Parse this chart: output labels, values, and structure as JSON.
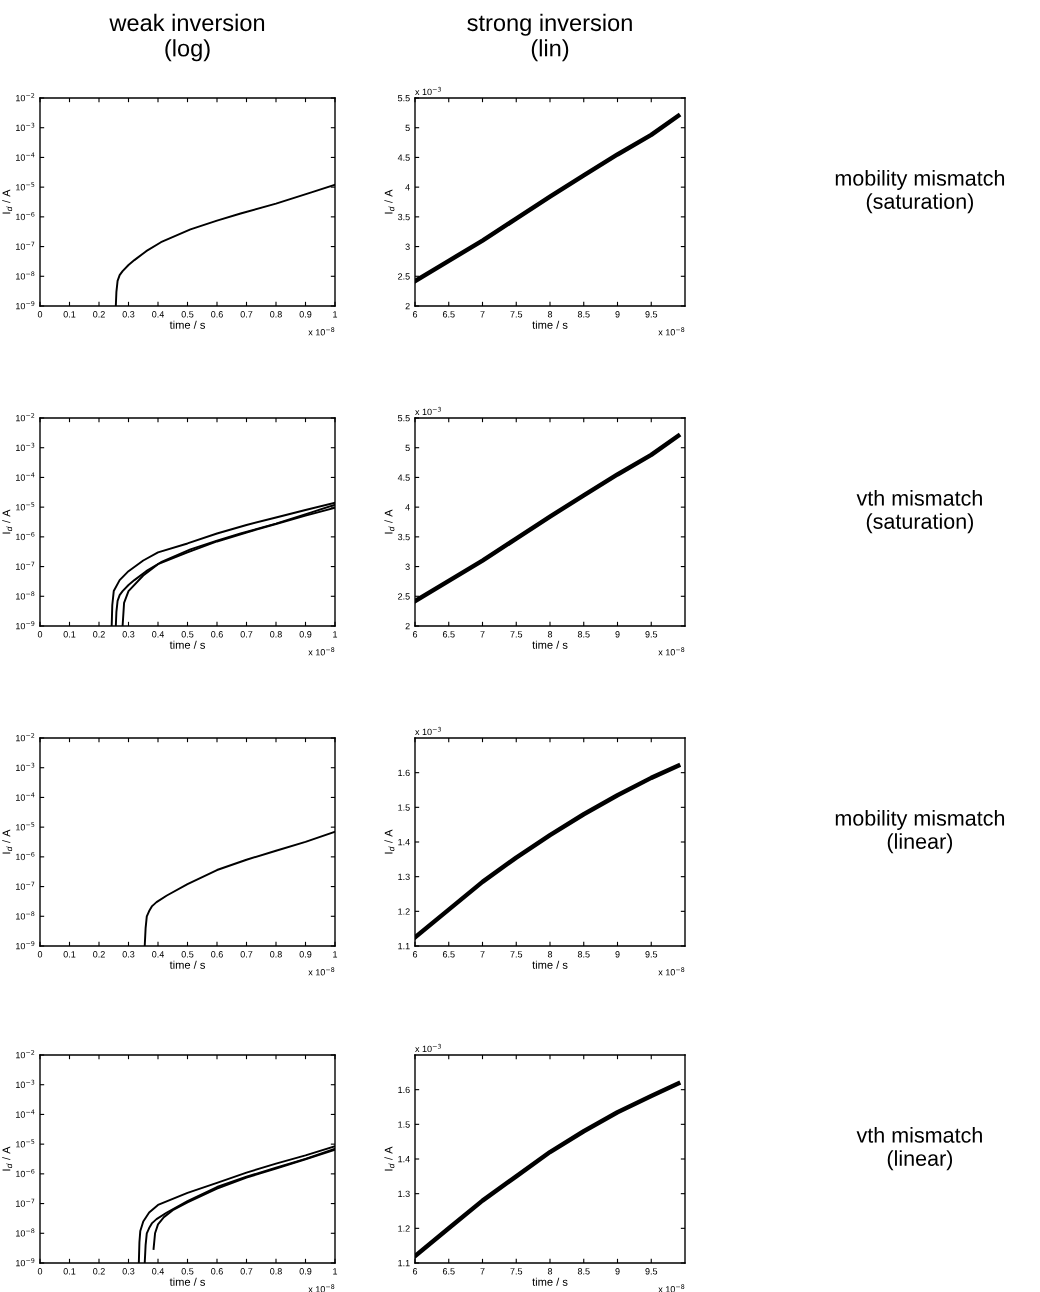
{
  "chart_data": [
    {
      "type": "line",
      "title": "weak inversion\n(log)",
      "xlabel": "time / s",
      "ylabel": "I$_{d}$ / A",
      "log": "y",
      "grid": false,
      "legend": false,
      "marker": "none",
      "line_style": "solid",
      "xlim": [
        0,
        1
      ],
      "xticks": [
        0,
        0.1,
        0.2,
        0.3,
        0.4,
        0.5,
        0.6,
        0.7,
        0.8,
        0.9,
        1
      ],
      "ylim": [
        1e-09,
        0.01
      ],
      "yticks": [
        {
          "value": 1e-09,
          "label": "10$^{−9}$"
        },
        {
          "value": 1e-08,
          "label": "10$^{−8}$"
        },
        {
          "value": 1e-07,
          "label": "10$^{−7}$"
        },
        {
          "value": 1e-06,
          "label": "10$^{−6}$"
        },
        {
          "value": 1e-05,
          "label": "10$^{−5}$"
        },
        {
          "value": 0.0001,
          "label": "10$^{−4}$"
        },
        {
          "value": 0.001,
          "label": "10$^{−3}$"
        },
        {
          "value": 0.01,
          "label": "10$^{−2}$"
        }
      ],
      "annotations": [
        "x 10$^{−8}$"
      ],
      "series": [
        {
          "color": "#000000",
          "x": [
            0.257,
            0.259,
            0.263,
            0.27,
            0.28,
            0.3,
            0.32,
            0.36,
            0.41,
            0.51,
            0.6,
            0.68,
            0.8,
            0.92,
            1.0
          ],
          "values": [
            1e-09,
            3e-09,
            7e-09,
            1.1e-08,
            1.5e-08,
            2.4e-08,
            3.5e-08,
            7e-08,
            1.4e-07,
            3.8e-07,
            7.5e-07,
            1.3e-06,
            2.8e-06,
            6.7e-06,
            1.2e-05
          ]
        }
      ]
    },
    {
      "type": "line",
      "title": "strong inversion\n(lin)",
      "xlabel": "time / s",
      "ylabel": "I$_{d}$ / A",
      "grid": false,
      "legend": false,
      "marker": "none",
      "line_style": "solid",
      "xlim": [
        6,
        10
      ],
      "xticks": [
        6,
        6.5,
        7,
        7.5,
        8,
        8.5,
        9,
        9.5
      ],
      "ylim": [
        2,
        5.5
      ],
      "yticks": [
        2,
        2.5,
        3,
        3.5,
        4,
        4.5,
        5,
        5.5
      ],
      "annotations": [
        "x 10$^{−8}$",
        "x 10$^{−3}$",
        "mobility mismatch\n(saturation)"
      ],
      "series": [
        {
          "color": "#000000",
          "x": [
            6,
            6.5,
            7,
            7.5,
            8,
            8.5,
            9,
            9.5,
            9.9
          ],
          "values": [
            2.42,
            2.76,
            3.1,
            3.47,
            3.84,
            4.2,
            4.55,
            4.88,
            5.2
          ]
        }
      ]
    },
    {
      "type": "line",
      "xlabel": "time / s",
      "ylabel": "I$_{d}$ / A",
      "log": "y",
      "grid": false,
      "legend": false,
      "marker": "none",
      "line_style": "solid",
      "xlim": [
        0,
        1
      ],
      "xticks": [
        0,
        0.1,
        0.2,
        0.3,
        0.4,
        0.5,
        0.6,
        0.7,
        0.8,
        0.9,
        1
      ],
      "ylim": [
        1e-09,
        0.01
      ],
      "yticks": [
        {
          "value": 1e-09,
          "label": "10$^{−9}$"
        },
        {
          "value": 1e-08,
          "label": "10$^{−8}$"
        },
        {
          "value": 1e-07,
          "label": "10$^{−7}$"
        },
        {
          "value": 1e-06,
          "label": "10$^{−6}$"
        },
        {
          "value": 1e-05,
          "label": "10$^{−5}$"
        },
        {
          "value": 0.0001,
          "label": "10$^{−4}$"
        },
        {
          "value": 0.001,
          "label": "10$^{−3}$"
        },
        {
          "value": 0.01,
          "label": "10$^{−2}$"
        }
      ],
      "annotations": [
        "x 10$^{−8}$"
      ],
      "series": [
        {
          "color": "#000000",
          "x": [
            0.243,
            0.245,
            0.25,
            0.27,
            0.3,
            0.35,
            0.4,
            0.5,
            0.6,
            0.7,
            0.8,
            0.9,
            1.0
          ],
          "values": [
            1e-09,
            5e-09,
            1.5e-08,
            3.5e-08,
            7e-08,
            1.6e-07,
            3e-07,
            6e-07,
            1.3e-06,
            2.5e-06,
            4.5e-06,
            8e-06,
            1.4e-05
          ]
        },
        {
          "color": "#000000",
          "x": [
            0.257,
            0.259,
            0.263,
            0.27,
            0.28,
            0.3,
            0.32,
            0.36,
            0.41,
            0.51,
            0.6,
            0.68,
            0.8,
            0.92,
            1.0
          ],
          "values": [
            1e-09,
            3e-09,
            7e-09,
            1.1e-08,
            1.5e-08,
            2.4e-08,
            3.5e-08,
            7e-08,
            1.4e-07,
            3.8e-07,
            7.5e-07,
            1.3e-06,
            2.8e-06,
            6.7e-06,
            1.2e-05
          ]
        },
        {
          "color": "#000000",
          "x": [
            0.28,
            0.285,
            0.3,
            0.35,
            0.4,
            0.5,
            0.6,
            0.7,
            0.8,
            0.9,
            1.0
          ],
          "values": [
            1e-09,
            6e-09,
            1.5e-08,
            5e-08,
            1.2e-07,
            3e-07,
            7e-07,
            1.4e-06,
            2.7e-06,
            5.2e-06,
            9.5e-06
          ]
        }
      ]
    },
    {
      "type": "line",
      "xlabel": "time / s",
      "ylabel": "I$_{d}$ / A",
      "grid": false,
      "legend": false,
      "marker": "none",
      "line_style": "solid",
      "xlim": [
        6,
        10
      ],
      "xticks": [
        6,
        6.5,
        7,
        7.5,
        8,
        8.5,
        9,
        9.5
      ],
      "ylim": [
        2,
        5.5
      ],
      "yticks": [
        2,
        2.5,
        3,
        3.5,
        4,
        4.5,
        5,
        5.5
      ],
      "annotations": [
        "x 10$^{−8}$",
        "x 10$^{−3}$",
        "vth mismatch\n(saturation)"
      ],
      "series": [
        {
          "color": "#000000",
          "x": [
            6,
            6.5,
            7,
            7.5,
            8,
            8.5,
            9,
            9.5,
            9.9
          ],
          "values": [
            2.42,
            2.76,
            3.1,
            3.47,
            3.84,
            4.2,
            4.55,
            4.88,
            5.2
          ]
        }
      ]
    },
    {
      "type": "line",
      "xlabel": "time / s",
      "ylabel": "I$_{d}$ / A",
      "log": "y",
      "grid": false,
      "legend": false,
      "marker": "none",
      "line_style": "solid",
      "xlim": [
        0,
        1
      ],
      "xticks": [
        0,
        0.1,
        0.2,
        0.3,
        0.4,
        0.5,
        0.6,
        0.7,
        0.8,
        0.9,
        1
      ],
      "ylim": [
        1e-09,
        0.01
      ],
      "yticks": [
        {
          "value": 1e-09,
          "label": "10$^{−9}$"
        },
        {
          "value": 1e-08,
          "label": "10$^{−8}$"
        },
        {
          "value": 1e-07,
          "label": "10$^{−7}$"
        },
        {
          "value": 1e-06,
          "label": "10$^{−6}$"
        },
        {
          "value": 1e-05,
          "label": "10$^{−5}$"
        },
        {
          "value": 0.0001,
          "label": "10$^{−4}$"
        },
        {
          "value": 0.001,
          "label": "10$^{−3}$"
        },
        {
          "value": 0.01,
          "label": "10$^{−2}$"
        }
      ],
      "annotations": [
        "x 10$^{−8}$"
      ],
      "series": [
        {
          "color": "#000000",
          "x": [
            0.355,
            0.358,
            0.362,
            0.37,
            0.38,
            0.395,
            0.43,
            0.5,
            0.6,
            0.7,
            0.8,
            0.9,
            1.0
          ],
          "values": [
            1e-09,
            4e-09,
            1e-08,
            1.5e-08,
            2.2e-08,
            3e-08,
            5e-08,
            1.2e-07,
            3.6e-07,
            8e-07,
            1.6e-06,
            3.2e-06,
            7e-06
          ]
        }
      ]
    },
    {
      "type": "line",
      "xlabel": "time / s",
      "ylabel": "I$_{d}$ / A",
      "grid": false,
      "legend": false,
      "marker": "none",
      "line_style": "solid",
      "xlim": [
        6,
        10
      ],
      "xticks": [
        6,
        6.5,
        7,
        7.5,
        8,
        8.5,
        9,
        9.5
      ],
      "ylim": [
        1.1,
        1.7
      ],
      "yticks": [
        1.1,
        1.2,
        1.3,
        1.4,
        1.5,
        1.6
      ],
      "annotations": [
        "x 10$^{−8}$",
        "x 10$^{−3}$",
        "mobility mismatch\n(linear)"
      ],
      "series": [
        {
          "color": "#000000",
          "x": [
            6,
            6.5,
            7,
            7.5,
            8,
            8.5,
            9,
            9.5,
            9.9
          ],
          "values": [
            1.125,
            1.205,
            1.285,
            1.355,
            1.42,
            1.48,
            1.535,
            1.585,
            1.62
          ]
        }
      ]
    },
    {
      "type": "line",
      "xlabel": "time / s",
      "ylabel": "I$_{d}$ / A",
      "log": "y",
      "grid": false,
      "legend": false,
      "marker": "none",
      "line_style": "solid",
      "xlim": [
        0,
        1
      ],
      "xticks": [
        0,
        0.1,
        0.2,
        0.3,
        0.4,
        0.5,
        0.6,
        0.7,
        0.8,
        0.9,
        1
      ],
      "ylim": [
        1e-09,
        0.01
      ],
      "yticks": [
        {
          "value": 1e-09,
          "label": "10$^{−9}$"
        },
        {
          "value": 1e-08,
          "label": "10$^{−8}$"
        },
        {
          "value": 1e-07,
          "label": "10$^{−7}$"
        },
        {
          "value": 1e-06,
          "label": "10$^{−6}$"
        },
        {
          "value": 1e-05,
          "label": "10$^{−5}$"
        },
        {
          "value": 0.0001,
          "label": "10$^{−4}$"
        },
        {
          "value": 0.001,
          "label": "10$^{−3}$"
        },
        {
          "value": 0.01,
          "label": "10$^{−2}$"
        }
      ],
      "annotations": [
        "x 10$^{−8}$"
      ],
      "series": [
        {
          "color": "#000000",
          "x": [
            0.335,
            0.337,
            0.34,
            0.35,
            0.37,
            0.4,
            0.5,
            0.6,
            0.7,
            0.8,
            0.9,
            1.0
          ],
          "values": [
            1e-09,
            5e-09,
            1.2e-08,
            2.5e-08,
            5e-08,
            9e-08,
            2.3e-07,
            5e-07,
            1.1e-06,
            2.2e-06,
            4.2e-06,
            8.5e-06
          ]
        },
        {
          "color": "#000000",
          "x": [
            0.355,
            0.358,
            0.362,
            0.37,
            0.38,
            0.395,
            0.43,
            0.5,
            0.6,
            0.7,
            0.8,
            0.9,
            1.0
          ],
          "values": [
            1e-09,
            4e-09,
            1e-08,
            1.5e-08,
            2.2e-08,
            3e-08,
            5e-08,
            1.2e-07,
            3.6e-07,
            8e-07,
            1.6e-06,
            3.2e-06,
            7e-06
          ]
        },
        {
          "color": "#000000",
          "x": [
            0.385,
            0.39,
            0.4,
            0.42,
            0.45,
            0.5,
            0.6,
            0.7,
            0.8,
            0.9,
            1.0
          ],
          "values": [
            3e-09,
            1e-08,
            2e-08,
            3.5e-08,
            6e-08,
            1.1e-07,
            3.2e-07,
            7.5e-07,
            1.5e-06,
            3.1e-06,
            6.5e-06
          ]
        }
      ]
    },
    {
      "type": "line",
      "xlabel": "time / s",
      "ylabel": "I$_{d}$ / A",
      "grid": false,
      "legend": false,
      "marker": "none",
      "line_style": "solid",
      "xlim": [
        6,
        10
      ],
      "xticks": [
        6,
        6.5,
        7,
        7.5,
        8,
        8.5,
        9,
        9.5
      ],
      "ylim": [
        1.1,
        1.7
      ],
      "yticks": [
        1.1,
        1.2,
        1.3,
        1.4,
        1.5,
        1.6
      ],
      "annotations": [
        "x 10$^{−8}$",
        "x 10$^{−3}$",
        "vth mismatch\n(linear)"
      ],
      "series": [
        {
          "color": "#000000",
          "x": [
            6,
            6.5,
            7,
            7.5,
            8,
            8.5,
            9,
            9.5,
            9.9
          ],
          "values": [
            1.12,
            1.2,
            1.28,
            1.35,
            1.42,
            1.48,
            1.535,
            1.582,
            1.618
          ]
        }
      ]
    }
  ]
}
